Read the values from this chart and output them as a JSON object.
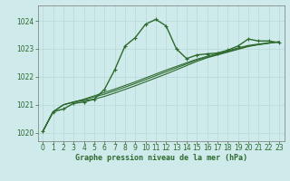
{
  "title": "Graphe pression niveau de la mer (hPa)",
  "background_color": "#ceeaea",
  "grid_color": "#b8d8d8",
  "line_color": "#2d6a2d",
  "xlim": [
    -0.5,
    23.5
  ],
  "ylim": [
    1019.7,
    1024.55
  ],
  "yticks": [
    1020,
    1021,
    1022,
    1023,
    1024
  ],
  "xticks": [
    0,
    1,
    2,
    3,
    4,
    5,
    6,
    7,
    8,
    9,
    10,
    11,
    12,
    13,
    14,
    15,
    16,
    17,
    18,
    19,
    20,
    21,
    22,
    23
  ],
  "series": [
    {
      "x": [
        0,
        1,
        2,
        3,
        4,
        5,
        6,
        7,
        8,
        9,
        10,
        11,
        12,
        13,
        14,
        15,
        16,
        17,
        18,
        19,
        20,
        21,
        22,
        23
      ],
      "y": [
        1020.05,
        1020.75,
        1020.85,
        1021.05,
        1021.1,
        1021.2,
        1021.55,
        1022.25,
        1023.1,
        1023.4,
        1023.88,
        1024.05,
        1023.82,
        1023.0,
        1022.65,
        1022.78,
        1022.82,
        1022.85,
        1022.95,
        1023.1,
        1023.35,
        1023.28,
        1023.28,
        1023.22
      ],
      "marker": true,
      "lw": 1.0,
      "ms": 3.5
    },
    {
      "x": [
        0,
        1,
        2,
        3,
        4,
        5,
        6,
        7,
        8,
        9,
        10,
        11,
        12,
        13,
        14,
        15,
        16,
        17,
        18,
        19,
        20,
        21,
        22,
        23
      ],
      "y": [
        1020.05,
        1020.75,
        1021.0,
        1021.1,
        1021.15,
        1021.2,
        1021.3,
        1021.42,
        1021.55,
        1021.68,
        1021.82,
        1021.96,
        1022.1,
        1022.25,
        1022.4,
        1022.55,
        1022.68,
        1022.78,
        1022.88,
        1022.98,
        1023.08,
        1023.15,
        1023.2,
        1023.25
      ],
      "marker": false,
      "lw": 0.8,
      "ms": 0
    },
    {
      "x": [
        0,
        1,
        2,
        3,
        4,
        5,
        6,
        7,
        8,
        9,
        10,
        11,
        12,
        13,
        14,
        15,
        16,
        17,
        18,
        19,
        20,
        21,
        22,
        23
      ],
      "y": [
        1020.05,
        1020.75,
        1021.0,
        1021.1,
        1021.18,
        1021.28,
        1021.38,
        1021.5,
        1021.63,
        1021.76,
        1021.9,
        1022.04,
        1022.18,
        1022.32,
        1022.46,
        1022.6,
        1022.7,
        1022.8,
        1022.9,
        1023.0,
        1023.1,
        1023.15,
        1023.2,
        1023.25
      ],
      "marker": false,
      "lw": 0.8,
      "ms": 0
    },
    {
      "x": [
        0,
        1,
        2,
        3,
        4,
        5,
        6,
        7,
        8,
        9,
        10,
        11,
        12,
        13,
        14,
        15,
        16,
        17,
        18,
        19,
        20,
        21,
        22,
        23
      ],
      "y": [
        1020.05,
        1020.75,
        1021.0,
        1021.1,
        1021.2,
        1021.32,
        1021.44,
        1021.56,
        1021.69,
        1021.82,
        1021.96,
        1022.1,
        1022.24,
        1022.37,
        1022.5,
        1022.63,
        1022.73,
        1022.83,
        1022.93,
        1023.03,
        1023.12,
        1023.17,
        1023.22,
        1023.25
      ],
      "marker": false,
      "lw": 0.8,
      "ms": 0
    }
  ]
}
